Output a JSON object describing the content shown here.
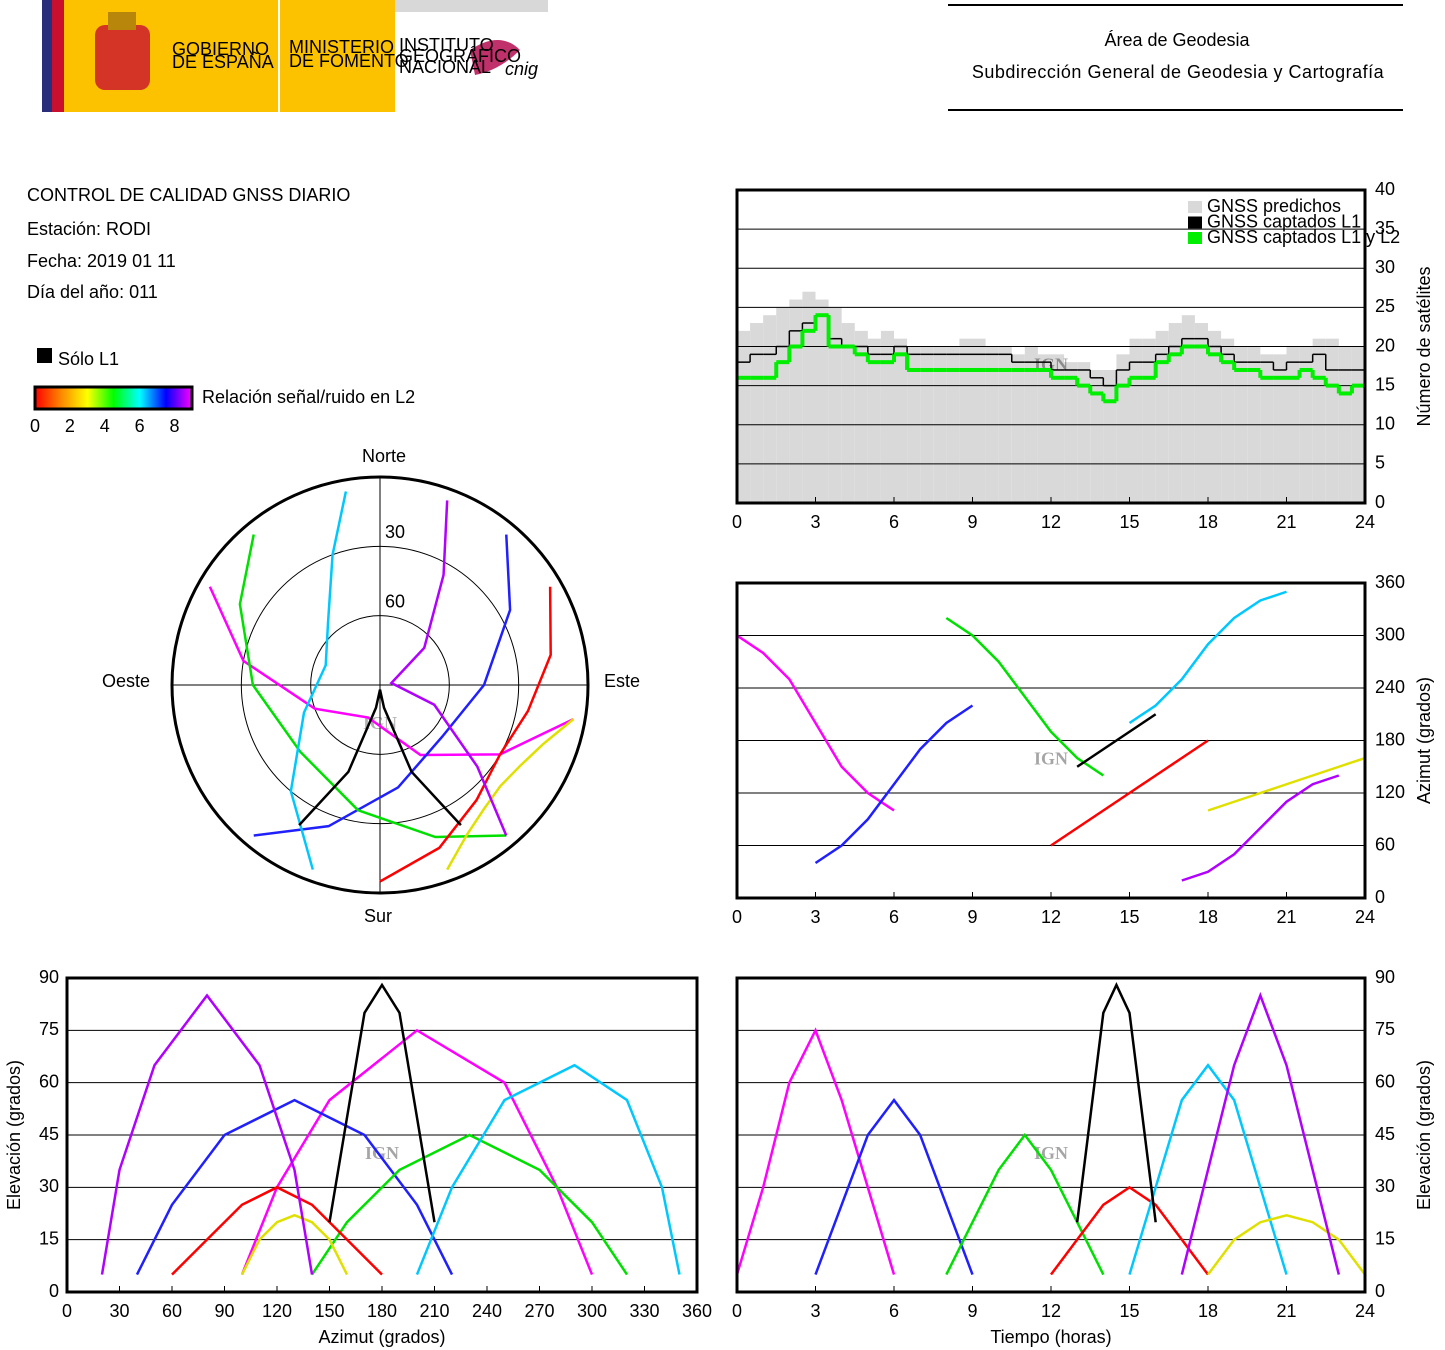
{
  "header": {
    "gov_lines": [
      "GOBIERNO",
      "DE ESPAÑA"
    ],
    "ministry_lines": [
      "MINISTERIO",
      "DE FOMENTO"
    ],
    "institute_lines": [
      "INSTITUTO",
      "GEOGRÁFICO",
      "NACIONAL"
    ],
    "cnig": "cnig",
    "area": "Área de Geodesia",
    "subdirection": "Subdirección General de Geodesia y Cartografía"
  },
  "report": {
    "title": "CONTROL DE CALIDAD GNSS DIARIO",
    "station": "Estación: RODI",
    "date": "Fecha: 2019 01 11",
    "doy": "Día del año: 011",
    "only_l1": "Sólo L1",
    "colorbar": {
      "label": "Relación señal/ruido en L2",
      "lim": [
        0,
        9
      ],
      "ticks": [
        0,
        2,
        4,
        6,
        8
      ],
      "colors": [
        "#ff0000",
        "#ff8800",
        "#ffff00",
        "#00ff00",
        "#00ffff",
        "#0000ff",
        "#ff00ff"
      ]
    },
    "watermark": "IGN"
  },
  "satellite_tracks": [
    {
      "color": "#ff00ff",
      "t": [
        0,
        1,
        2,
        3,
        4,
        5,
        6
      ],
      "az": [
        300,
        280,
        250,
        200,
        150,
        120,
        100
      ],
      "el": [
        5,
        30,
        60,
        75,
        55,
        30,
        5
      ]
    },
    {
      "color": "#2020ff",
      "t": [
        3,
        4,
        5,
        6,
        7,
        8,
        9
      ],
      "az": [
        40,
        60,
        90,
        130,
        170,
        200,
        220
      ],
      "el": [
        5,
        25,
        45,
        55,
        45,
        25,
        5
      ]
    },
    {
      "color": "#00e000",
      "t": [
        8,
        9,
        10,
        11,
        12,
        13,
        14
      ],
      "az": [
        320,
        300,
        270,
        230,
        190,
        160,
        140
      ],
      "el": [
        5,
        20,
        35,
        45,
        35,
        20,
        5
      ]
    },
    {
      "color": "#ff0000",
      "t": [
        12,
        13,
        14,
        15,
        16,
        17,
        18
      ],
      "az": [
        60,
        80,
        100,
        120,
        140,
        160,
        180
      ],
      "el": [
        5,
        15,
        25,
        30,
        25,
        15,
        5
      ]
    },
    {
      "color": "#00c8ff",
      "t": [
        15,
        16,
        17,
        18,
        19,
        20,
        21
      ],
      "az": [
        200,
        220,
        250,
        290,
        320,
        340,
        350
      ],
      "el": [
        5,
        30,
        55,
        65,
        55,
        30,
        5
      ]
    },
    {
      "color": "#000000",
      "t": [
        13,
        13.5,
        14,
        14.5,
        15,
        15.5,
        16
      ],
      "az": [
        150,
        160,
        170,
        180,
        190,
        200,
        210
      ],
      "el": [
        20,
        50,
        80,
        88,
        80,
        50,
        20
      ]
    },
    {
      "color": "#e0e000",
      "t": [
        18,
        19,
        20,
        21,
        22,
        23,
        24
      ],
      "az": [
        100,
        110,
        120,
        130,
        140,
        150,
        160
      ],
      "el": [
        5,
        15,
        20,
        22,
        20,
        15,
        5
      ]
    },
    {
      "color": "#b000ff",
      "t": [
        17,
        18,
        19,
        20,
        21,
        22,
        23
      ],
      "az": [
        20,
        30,
        50,
        80,
        110,
        130,
        140
      ],
      "el": [
        5,
        35,
        65,
        85,
        65,
        35,
        5
      ]
    }
  ],
  "chart_data": [
    {
      "type": "step",
      "y_label": "Número de satélites",
      "legend": "upper right",
      "grid": true,
      "xlim": [
        0,
        24
      ],
      "xticks": [
        0,
        3,
        6,
        9,
        12,
        15,
        18,
        21,
        24
      ],
      "ylim": [
        0,
        40
      ],
      "yticks": [
        0,
        5,
        10,
        15,
        20,
        25,
        30,
        35,
        40
      ],
      "x": [
        0,
        0.5,
        1,
        1.5,
        2,
        2.5,
        3,
        3.5,
        4,
        4.5,
        5,
        5.5,
        6,
        6.5,
        7,
        7.5,
        8,
        8.5,
        9,
        9.5,
        10,
        10.5,
        11,
        11.5,
        12,
        12.5,
        13,
        13.5,
        14,
        14.5,
        15,
        15.5,
        16,
        16.5,
        17,
        17.5,
        18,
        18.5,
        19,
        19.5,
        20,
        20.5,
        21,
        21.5,
        22,
        22.5,
        23,
        23.5,
        24
      ],
      "series": [
        {
          "name": "GNSS predichos",
          "color": "#d9d9d9",
          "values": [
            22,
            23,
            24,
            25,
            26,
            27,
            26,
            25,
            23,
            22,
            21,
            22,
            21,
            20,
            20,
            20,
            20,
            21,
            21,
            20,
            20,
            19,
            20,
            19,
            19,
            18,
            18,
            17,
            17,
            19,
            21,
            21,
            22,
            23,
            24,
            23,
            22,
            21,
            20,
            20,
            19,
            19,
            20,
            20,
            21,
            21,
            20,
            20,
            20
          ]
        },
        {
          "name": "GNSS captados L1",
          "color": "#000000",
          "values": [
            18,
            19,
            19,
            20,
            22,
            23,
            24,
            21,
            20,
            20,
            19,
            19,
            20,
            19,
            19,
            19,
            19,
            19,
            19,
            19,
            19,
            18,
            18,
            18,
            17,
            17,
            17,
            16,
            15,
            17,
            18,
            18,
            19,
            20,
            21,
            21,
            20,
            19,
            18,
            18,
            18,
            17,
            18,
            18,
            19,
            17,
            17,
            17,
            18
          ]
        },
        {
          "name": "GNSS captados L1 y L2",
          "color": "#00ee00",
          "values": [
            16,
            16,
            16,
            18,
            20,
            22,
            24,
            20,
            20,
            19,
            18,
            18,
            19,
            17,
            17,
            17,
            17,
            17,
            17,
            17,
            17,
            17,
            17,
            17,
            16,
            16,
            15,
            14,
            13,
            15,
            16,
            16,
            18,
            19,
            20,
            20,
            19,
            18,
            17,
            17,
            16,
            16,
            16,
            17,
            16,
            15,
            14,
            15,
            15
          ]
        }
      ]
    },
    {
      "type": "track",
      "y_label": "Azimut (grados)",
      "grid": true,
      "xlim": [
        0,
        24
      ],
      "xticks": [
        0,
        3,
        6,
        9,
        12,
        15,
        18,
        21,
        24
      ],
      "ylim": [
        0,
        360
      ],
      "yticks": [
        0,
        60,
        120,
        180,
        240,
        300,
        360
      ]
    },
    {
      "type": "track",
      "x_label": "Azimut (grados)",
      "y_label": "Elevación (grados)",
      "grid": true,
      "xlim": [
        0,
        360
      ],
      "xticks": [
        0,
        30,
        60,
        90,
        120,
        150,
        180,
        210,
        240,
        270,
        300,
        330,
        360
      ],
      "ylim": [
        0,
        90
      ],
      "yticks": [
        0,
        15,
        30,
        45,
        60,
        75,
        90
      ]
    },
    {
      "type": "track",
      "x_label": "Tiempo (horas)",
      "y_label": "Elevación (grados)",
      "grid": true,
      "xlim": [
        0,
        24
      ],
      "xticks": [
        0,
        3,
        6,
        9,
        12,
        15,
        18,
        21,
        24
      ],
      "ylim": [
        0,
        90
      ],
      "yticks": [
        0,
        15,
        30,
        45,
        60,
        75,
        90
      ]
    },
    {
      "type": "polar",
      "rings": [
        30,
        60
      ],
      "north": "Norte",
      "south": "Sur",
      "east": "Este",
      "west": "Oeste"
    }
  ]
}
